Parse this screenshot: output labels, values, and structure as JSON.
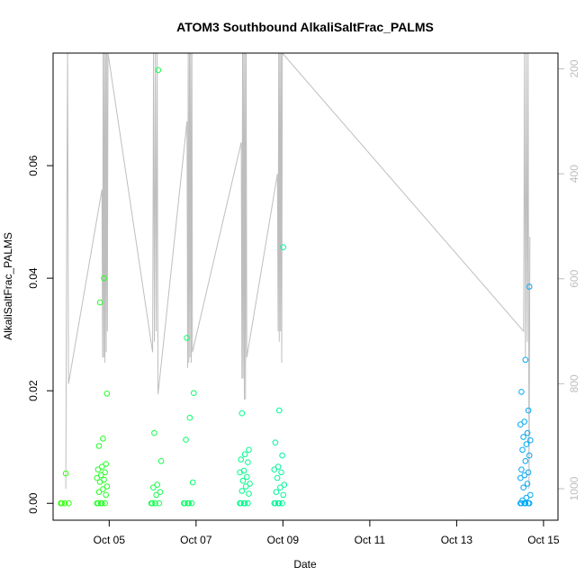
{
  "chart_data": {
    "type": "scatter",
    "title": "ATOM3 Southbound AlkaliSaltFrac_PALMS",
    "xlabel": "Date",
    "ylabel": "AlkaliSaltFrac_PALMS",
    "xlim": [
      "2016-10-03T17:00",
      "2016-10-15T08:00"
    ],
    "ylim": [
      -0.003,
      0.08
    ],
    "x_ticks": [
      {
        "value": "2016-10-05",
        "label": "Oct 05"
      },
      {
        "value": "2016-10-07",
        "label": "Oct 07"
      },
      {
        "value": "2016-10-09",
        "label": "Oct 09"
      },
      {
        "value": "2016-10-11",
        "label": "Oct 11"
      },
      {
        "value": "2016-10-13",
        "label": "Oct 13"
      },
      {
        "value": "2016-10-15",
        "label": "Oct 15"
      }
    ],
    "y_ticks": [
      0.0,
      0.02,
      0.04,
      0.06
    ],
    "y_tick_labels": [
      "0.00",
      "0.02",
      "0.04",
      "0.06"
    ],
    "secondary_axis": {
      "side": "right",
      "color": "#bebebe",
      "reversed": true,
      "ylim": [
        1060,
        170
      ],
      "ticks": [
        200,
        400,
        600,
        800,
        1000
      ],
      "tick_labels": [
        "200",
        "400",
        "600",
        "800",
        "1000"
      ]
    },
    "grid": false,
    "legend": "none",
    "point_color_scale": [
      "#33ff00",
      "#00ff80",
      "#00e6cc",
      "#0099ff"
    ],
    "line_color": "#bebebe",
    "clusters": [
      {
        "t": "2016-10-04T00:00",
        "values": [
          0.0,
          0.0,
          0.0,
          0.0,
          0.0053
        ]
      },
      {
        "t": "2016-10-04T20:00",
        "values": [
          0.0,
          0.0,
          0.0,
          0.0,
          0.0,
          0.0015,
          0.002,
          0.0025,
          0.003,
          0.0038,
          0.0042,
          0.0045,
          0.005,
          0.0055,
          0.006,
          0.0065,
          0.007,
          0.0102,
          0.0115,
          0.0195,
          0.0357,
          0.04
        ]
      },
      {
        "t": "2016-10-06T02:00",
        "values": [
          0.0,
          0.0,
          0.0,
          0.0,
          0.0015,
          0.002,
          0.0028,
          0.0033,
          0.0075,
          0.0125,
          0.077
        ]
      },
      {
        "t": "2016-10-06T20:00",
        "values": [
          0.0,
          0.0,
          0.0,
          0.0,
          0.0,
          0.0037,
          0.0113,
          0.0152,
          0.0196,
          0.0294
        ]
      },
      {
        "t": "2016-10-08T03:00",
        "values": [
          0.0,
          0.0,
          0.0,
          0.0,
          0.0,
          0.0017,
          0.0022,
          0.003,
          0.0035,
          0.004,
          0.0047,
          0.0055,
          0.0058,
          0.0073,
          0.0078,
          0.0087,
          0.0095,
          0.016
        ]
      },
      {
        "t": "2016-10-08T22:00",
        "values": [
          0.0,
          0.0,
          0.0,
          0.0,
          0.0,
          0.0015,
          0.002,
          0.0028,
          0.0033,
          0.0045,
          0.0055,
          0.006,
          0.0065,
          0.0085,
          0.0108,
          0.0165,
          0.0455
        ]
      },
      {
        "t": "2016-10-14T14:00",
        "values": [
          0.0,
          0.0,
          0.0,
          0.0,
          0.0,
          0.0,
          0.0005,
          0.001,
          0.0015,
          0.0028,
          0.0035,
          0.0045,
          0.005,
          0.0055,
          0.006,
          0.0075,
          0.0085,
          0.0095,
          0.0105,
          0.0112,
          0.0118,
          0.0125,
          0.014,
          0.0145,
          0.0165,
          0.0198,
          0.0255,
          0.0385
        ]
      }
    ],
    "altitude_profile": [
      [
        "2016-10-04T00:00",
        1000
      ],
      [
        "2016-10-04T00:30",
        520
      ],
      [
        "2016-10-04T01:00",
        170
      ],
      [
        "2016-10-04T01:30",
        800
      ],
      [
        "2016-10-04T20:00",
        430
      ],
      [
        "2016-10-04T20:20",
        750
      ],
      [
        "2016-10-04T20:40",
        170
      ],
      [
        "2016-10-04T21:00",
        750
      ],
      [
        "2016-10-04T21:20",
        170
      ],
      [
        "2016-10-04T21:40",
        760
      ],
      [
        "2016-10-04T22:00",
        170
      ],
      [
        "2016-10-04T22:20",
        740
      ],
      [
        "2016-10-04T22:40",
        170
      ],
      [
        "2016-10-04T23:00",
        700
      ],
      [
        "2016-10-04T23:20",
        170
      ],
      [
        "2016-10-06T00:00",
        740
      ],
      [
        "2016-10-06T00:30",
        170
      ],
      [
        "2016-10-06T01:00",
        720
      ],
      [
        "2016-10-06T01:30",
        170
      ],
      [
        "2016-10-06T02:00",
        700
      ],
      [
        "2016-10-06T02:30",
        170
      ],
      [
        "2016-10-06T03:00",
        820
      ],
      [
        "2016-10-06T19:00",
        300
      ],
      [
        "2016-10-06T19:20",
        770
      ],
      [
        "2016-10-06T19:40",
        170
      ],
      [
        "2016-10-06T20:00",
        760
      ],
      [
        "2016-10-06T20:20",
        170
      ],
      [
        "2016-10-06T20:40",
        750
      ],
      [
        "2016-10-06T21:00",
        170
      ],
      [
        "2016-10-06T21:20",
        760
      ],
      [
        "2016-10-06T21:40",
        170
      ],
      [
        "2016-10-06T22:00",
        740
      ],
      [
        "2016-10-08T01:00",
        340
      ],
      [
        "2016-10-08T01:20",
        790
      ],
      [
        "2016-10-08T01:40",
        170
      ],
      [
        "2016-10-08T02:00",
        790
      ],
      [
        "2016-10-08T02:20",
        170
      ],
      [
        "2016-10-08T02:40",
        830
      ],
      [
        "2016-10-08T03:00",
        170
      ],
      [
        "2016-10-08T03:20",
        830
      ],
      [
        "2016-10-08T03:40",
        170
      ],
      [
        "2016-10-08T04:00",
        750
      ],
      [
        "2016-10-08T21:00",
        400
      ],
      [
        "2016-10-08T21:20",
        700
      ],
      [
        "2016-10-08T21:40",
        170
      ],
      [
        "2016-10-08T22:00",
        720
      ],
      [
        "2016-10-08T22:20",
        170
      ],
      [
        "2016-10-08T22:40",
        700
      ],
      [
        "2016-10-08T23:00",
        170
      ],
      [
        "2016-10-08T23:20",
        760
      ],
      [
        "2016-10-08T23:40",
        170
      ],
      [
        "2016-10-14T13:00",
        700
      ],
      [
        "2016-10-14T13:30",
        170
      ],
      [
        "2016-10-14T14:00",
        750
      ],
      [
        "2016-10-14T14:30",
        170
      ],
      [
        "2016-10-14T15:00",
        720
      ],
      [
        "2016-10-14T15:30",
        170
      ],
      [
        "2016-10-14T16:00",
        1000
      ],
      [
        "2016-10-14T16:30",
        520
      ]
    ]
  }
}
